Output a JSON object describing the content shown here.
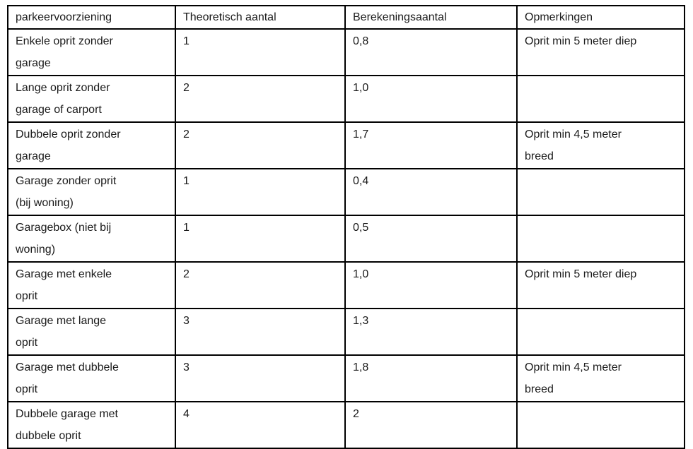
{
  "table": {
    "columns": [
      "parkeervoorziening",
      "Theoretisch aantal",
      "Berekeningsaantal",
      "Opmerkingen"
    ],
    "rows": [
      {
        "parkeervoorziening": "Enkele oprit zonder garage",
        "theoretisch_aantal": "1",
        "berekeningsaantal": "0,8",
        "opmerkingen": "Oprit min 5 meter diep"
      },
      {
        "parkeervoorziening": "Lange oprit zonder garage of carport",
        "theoretisch_aantal": "2",
        "berekeningsaantal": "1,0",
        "opmerkingen": ""
      },
      {
        "parkeervoorziening": "Dubbele oprit zonder garage",
        "theoretisch_aantal": "2",
        "berekeningsaantal": "1,7",
        "opmerkingen": "Oprit min 4,5 meter breed"
      },
      {
        "parkeervoorziening": "Garage zonder oprit (bij woning)",
        "theoretisch_aantal": "1",
        "berekeningsaantal": "0,4",
        "opmerkingen": ""
      },
      {
        "parkeervoorziening": "Garagebox (niet bij woning)",
        "theoretisch_aantal": "1",
        "berekeningsaantal": "0,5",
        "opmerkingen": ""
      },
      {
        "parkeervoorziening": "Garage met enkele oprit",
        "theoretisch_aantal": "2",
        "berekeningsaantal": "1,0",
        "opmerkingen": "Oprit min 5 meter diep"
      },
      {
        "parkeervoorziening": "Garage met lange oprit",
        "theoretisch_aantal": "3",
        "berekeningsaantal": "1,3",
        "opmerkingen": ""
      },
      {
        "parkeervoorziening": "Garage met dubbele oprit",
        "theoretisch_aantal": "3",
        "berekeningsaantal": "1,8",
        "opmerkingen": "Oprit min 4,5 meter breed"
      },
      {
        "parkeervoorziening": "Dubbele garage met dubbele oprit",
        "theoretisch_aantal": "4",
        "berekeningsaantal": "2",
        "opmerkingen": ""
      }
    ],
    "colors": {
      "text": "#1a1a1a",
      "border": "#000000",
      "background": "#ffffff"
    }
  }
}
